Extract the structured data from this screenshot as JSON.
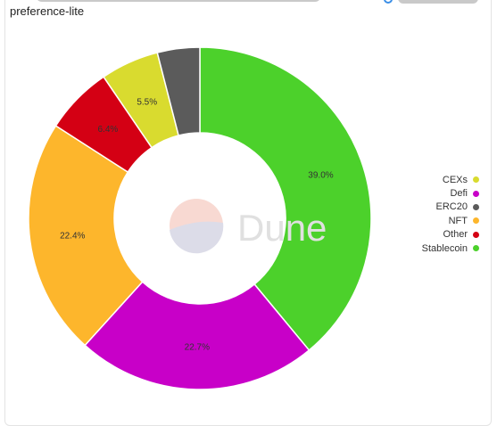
{
  "subtitle": "preference-lite",
  "watermark": "Dune",
  "chart_data": {
    "type": "pie",
    "variant": "donut",
    "slices": [
      {
        "name": "Stablecoin",
        "value": 39.0,
        "label": "39.0%",
        "color": "#4cd12b"
      },
      {
        "name": "Defi",
        "value": 22.7,
        "label": "22.7%",
        "color": "#c800c8"
      },
      {
        "name": "NFT",
        "value": 22.4,
        "label": "22.4%",
        "color": "#fdb62c"
      },
      {
        "name": "Other",
        "value": 6.4,
        "label": "6.4%",
        "color": "#d40014"
      },
      {
        "name": "CEXs",
        "value": 5.5,
        "label": "5.5%",
        "color": "#d9db2f"
      },
      {
        "name": "ERC20",
        "value": 4.0,
        "label": "",
        "color": "#5b5b5b"
      }
    ],
    "legend_position": "right",
    "legend": [
      {
        "name": "CEXs",
        "color": "#d9db2f"
      },
      {
        "name": "Defi",
        "color": "#c800c8"
      },
      {
        "name": "ERC20",
        "color": "#5b5b5b"
      },
      {
        "name": "NFT",
        "color": "#fdb62c"
      },
      {
        "name": "Other",
        "color": "#d40014"
      },
      {
        "name": "Stablecoin",
        "color": "#4cd12b"
      }
    ]
  }
}
